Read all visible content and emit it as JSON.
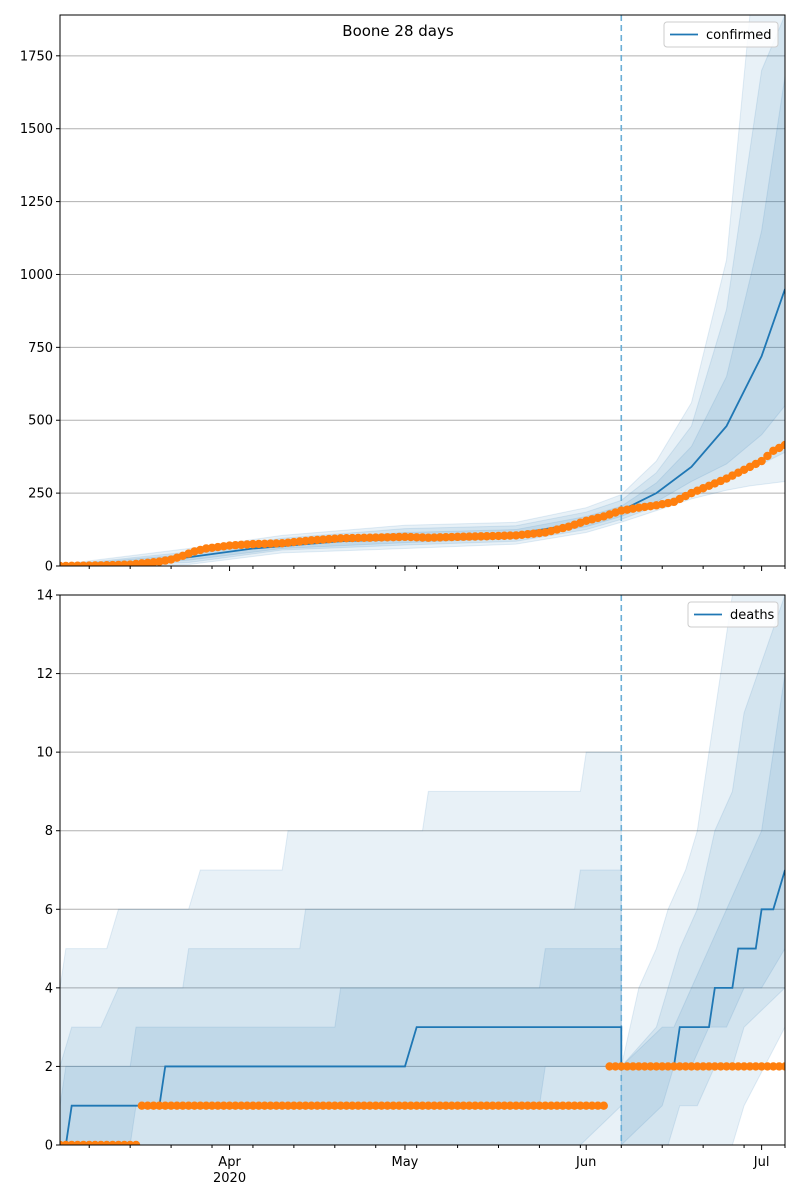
{
  "figure": {
    "title": "Boone 28 days"
  },
  "chart_data": [
    {
      "type": "line",
      "name": "confirmed",
      "x_axis": {
        "type": "date",
        "range": [
          "2020-03-03",
          "2020-07-05"
        ],
        "tick_labels": [
          {
            "date": "2020-04-01",
            "label": "Apr",
            "sublabel": "2020"
          },
          {
            "date": "2020-05-01",
            "label": "May"
          },
          {
            "date": "2020-06-01",
            "label": "Jun"
          },
          {
            "date": "2020-07-01",
            "label": "Jul"
          }
        ]
      },
      "ylim": [
        0,
        1890
      ],
      "yticks": [
        0,
        250,
        500,
        750,
        1000,
        1250,
        1500,
        1750
      ],
      "grid": "horizontal",
      "legend": {
        "position": "top-right",
        "entries": [
          "confirmed"
        ]
      },
      "forecast_start": "2020-06-07",
      "colors": {
        "model": "#1f77b4",
        "observed": "#ff7f0e",
        "vline": "#6aaed6"
      },
      "model_median": {
        "x": [
          "2020-03-03",
          "2020-03-15",
          "2020-03-25",
          "2020-04-05",
          "2020-04-20",
          "2020-05-05",
          "2020-05-20",
          "2020-06-01",
          "2020-06-07",
          "2020-06-13",
          "2020-06-19",
          "2020-06-25",
          "2020-07-01",
          "2020-07-05"
        ],
        "y": [
          0,
          10,
          30,
          60,
          85,
          95,
          110,
          150,
          190,
          250,
          340,
          480,
          720,
          950
        ]
      },
      "bands": [
        {
          "x": [
            "2020-03-03",
            "2020-03-25",
            "2020-04-10",
            "2020-05-01",
            "2020-05-20",
            "2020-06-01",
            "2020-06-07",
            "2020-06-13",
            "2020-06-19",
            "2020-06-25",
            "2020-06-29",
            "2020-07-05"
          ],
          "upper": [
            5,
            60,
            105,
            140,
            150,
            200,
            245,
            360,
            560,
            1050,
            1890,
            1890
          ],
          "lower": [
            0,
            5,
            45,
            60,
            75,
            115,
            150,
            190,
            230,
            260,
            275,
            290
          ]
        },
        {
          "x": [
            "2020-03-03",
            "2020-03-25",
            "2020-04-10",
            "2020-05-01",
            "2020-05-20",
            "2020-06-01",
            "2020-06-07",
            "2020-06-13",
            "2020-06-19",
            "2020-06-25",
            "2020-07-01",
            "2020-07-05"
          ],
          "upper": [
            3,
            48,
            95,
            128,
            138,
            185,
            225,
            320,
            480,
            880,
            1700,
            1890
          ],
          "lower": [
            0,
            12,
            55,
            72,
            85,
            125,
            160,
            205,
            260,
            300,
            350,
            390
          ]
        },
        {
          "x": [
            "2020-03-03",
            "2020-03-25",
            "2020-04-10",
            "2020-05-01",
            "2020-05-20",
            "2020-06-01",
            "2020-06-07",
            "2020-06-13",
            "2020-06-19",
            "2020-06-25",
            "2020-07-01",
            "2020-07-05"
          ],
          "upper": [
            2,
            40,
            85,
            115,
            125,
            170,
            205,
            285,
            410,
            650,
            1150,
            1680
          ],
          "lower": [
            0,
            20,
            60,
            80,
            95,
            135,
            170,
            220,
            290,
            350,
            450,
            550
          ]
        }
      ],
      "observed": {
        "x": [
          "2020-03-03",
          "2020-03-10",
          "2020-03-15",
          "2020-03-20",
          "2020-03-22",
          "2020-03-24",
          "2020-03-26",
          "2020-03-28",
          "2020-04-01",
          "2020-04-05",
          "2020-04-10",
          "2020-04-15",
          "2020-04-20",
          "2020-04-25",
          "2020-05-01",
          "2020-05-05",
          "2020-05-10",
          "2020-05-15",
          "2020-05-20",
          "2020-05-25",
          "2020-05-29",
          "2020-06-01",
          "2020-06-04",
          "2020-06-07",
          "2020-06-10",
          "2020-06-13",
          "2020-06-16",
          "2020-06-19",
          "2020-06-22",
          "2020-06-25",
          "2020-06-28",
          "2020-07-01",
          "2020-07-03",
          "2020-07-05"
        ],
        "y": [
          0,
          2,
          5,
          15,
          22,
          35,
          50,
          60,
          70,
          75,
          78,
          88,
          95,
          97,
          100,
          97,
          100,
          102,
          105,
          115,
          135,
          155,
          170,
          190,
          200,
          208,
          220,
          250,
          275,
          300,
          330,
          360,
          395,
          415
        ]
      }
    },
    {
      "type": "line",
      "name": "deaths",
      "x_axis": {
        "type": "date",
        "range": [
          "2020-03-03",
          "2020-07-05"
        ],
        "tick_labels": [
          {
            "date": "2020-04-01",
            "label": "Apr",
            "sublabel": "2020"
          },
          {
            "date": "2020-05-01",
            "label": "May"
          },
          {
            "date": "2020-06-01",
            "label": "Jun"
          },
          {
            "date": "2020-07-01",
            "label": "Jul"
          }
        ]
      },
      "ylim": [
        0,
        14
      ],
      "yticks": [
        0,
        2,
        4,
        6,
        8,
        10,
        12,
        14
      ],
      "grid": "horizontal",
      "legend": {
        "position": "top-right",
        "entries": [
          "deaths"
        ]
      },
      "forecast_start": "2020-06-07",
      "colors": {
        "model": "#1f77b4",
        "observed": "#ff7f0e",
        "vline": "#6aaed6"
      },
      "model_median": {
        "x": [
          "2020-03-03",
          "2020-03-04",
          "2020-03-05",
          "2020-03-20",
          "2020-03-21",
          "2020-05-01",
          "2020-05-03",
          "2020-06-07",
          "2020-06-07",
          "2020-06-16",
          "2020-06-17",
          "2020-06-22",
          "2020-06-23",
          "2020-06-26",
          "2020-06-27",
          "2020-06-30",
          "2020-07-01",
          "2020-07-03",
          "2020-07-05"
        ],
        "y": [
          0,
          0,
          1,
          1,
          2,
          2,
          3,
          3,
          2,
          2,
          3,
          3,
          4,
          4,
          5,
          5,
          6,
          6,
          7
        ]
      },
      "bands": [
        {
          "x": [
            "2020-03-03",
            "2020-03-04",
            "2020-03-11",
            "2020-03-13",
            "2020-03-25",
            "2020-03-27",
            "2020-04-10",
            "2020-04-11",
            "2020-05-04",
            "2020-05-05",
            "2020-05-31",
            "2020-06-01",
            "2020-06-07",
            "2020-06-07",
            "2020-06-10",
            "2020-06-13",
            "2020-06-15",
            "2020-06-18",
            "2020-06-20",
            "2020-06-22",
            "2020-06-24",
            "2020-06-26",
            "2020-06-28",
            "2020-07-05"
          ],
          "upper": [
            4,
            5,
            5,
            6,
            6,
            7,
            7,
            8,
            8,
            9,
            9,
            10,
            10,
            2,
            4,
            5,
            6,
            7,
            8,
            10,
            12,
            14,
            14,
            14
          ],
          "lower": [
            0,
            0,
            0,
            0,
            0,
            0,
            0,
            0,
            0,
            0,
            0,
            0,
            0,
            0,
            0,
            0,
            0,
            0,
            0,
            0,
            0,
            0,
            1,
            3
          ]
        },
        {
          "x": [
            "2020-03-03",
            "2020-03-05",
            "2020-03-10",
            "2020-03-13",
            "2020-03-24",
            "2020-03-25",
            "2020-04-13",
            "2020-04-14",
            "2020-05-30",
            "2020-05-31",
            "2020-06-07",
            "2020-06-07",
            "2020-06-13",
            "2020-06-15",
            "2020-06-17",
            "2020-06-20",
            "2020-06-23",
            "2020-06-26",
            "2020-06-28",
            "2020-07-05"
          ],
          "upper": [
            2,
            3,
            3,
            4,
            4,
            5,
            5,
            6,
            6,
            7,
            7,
            2,
            3,
            4,
            5,
            6,
            8,
            9,
            11,
            14
          ],
          "lower": [
            0,
            0,
            0,
            0,
            0,
            0,
            0,
            0,
            0,
            0,
            1,
            0,
            0,
            0,
            1,
            1,
            2,
            2,
            3,
            4
          ]
        },
        {
          "x": [
            "2020-03-03",
            "2020-03-04",
            "2020-03-15",
            "2020-03-16",
            "2020-04-19",
            "2020-04-20",
            "2020-05-24",
            "2020-05-25",
            "2020-06-07",
            "2020-06-07",
            "2020-06-14",
            "2020-06-16",
            "2020-06-19",
            "2020-06-22",
            "2020-06-25",
            "2020-06-28",
            "2020-07-01",
            "2020-07-05"
          ],
          "upper": [
            1,
            2,
            2,
            3,
            3,
            4,
            4,
            5,
            5,
            2,
            3,
            3,
            4,
            5,
            6,
            7,
            8,
            12
          ],
          "lower": [
            0,
            0,
            0,
            1,
            1,
            1,
            1,
            2,
            2,
            0,
            1,
            2,
            2,
            3,
            3,
            4,
            4,
            5
          ]
        }
      ],
      "observed": {
        "x": [
          "2020-03-03",
          "2020-03-16",
          "2020-03-17",
          "2020-06-04",
          "2020-06-05",
          "2020-07-05"
        ],
        "y": [
          0,
          0,
          1,
          1,
          2,
          2
        ]
      }
    }
  ]
}
